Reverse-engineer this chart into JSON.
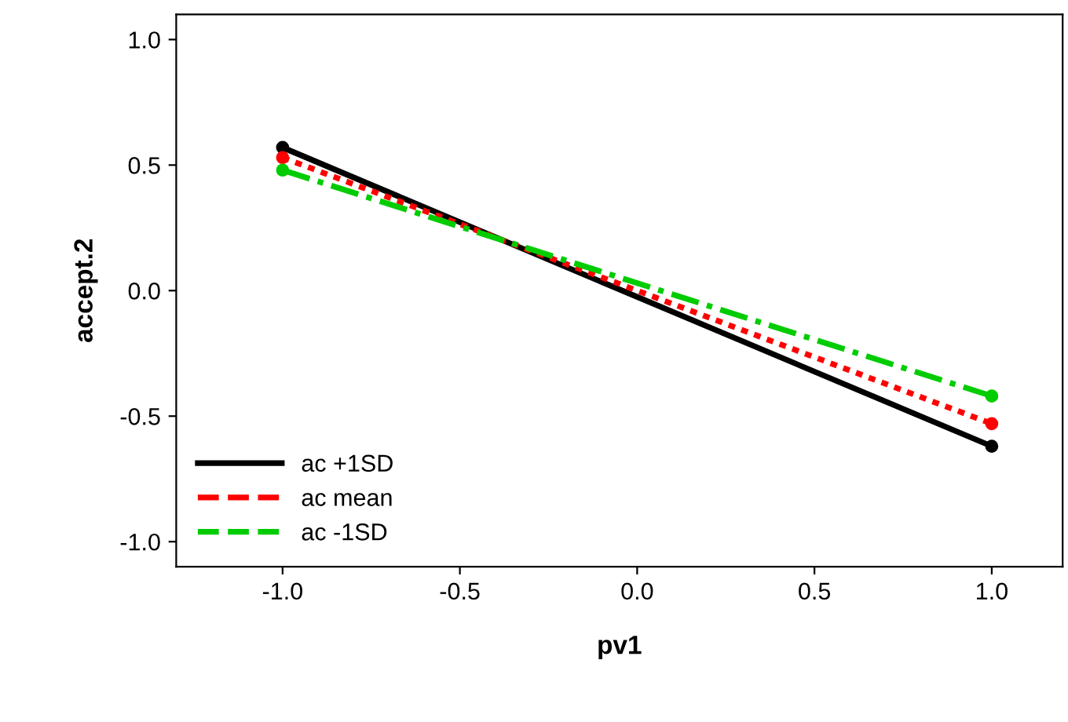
{
  "chart_data": {
    "type": "line",
    "xlabel": "pv1",
    "ylabel": "accept.2",
    "x": [
      -1.0,
      1.0
    ],
    "series": [
      {
        "name": "ac +1SD",
        "color": "#000000",
        "values": [
          0.57,
          -0.62
        ],
        "line_style": "solid"
      },
      {
        "name": "ac mean",
        "color": "#ff0000",
        "values": [
          0.53,
          -0.53
        ],
        "line_style": "dotted"
      },
      {
        "name": "ac -1SD",
        "color": "#00cc00",
        "values": [
          0.48,
          -0.42
        ],
        "line_style": "dashed"
      }
    ],
    "xlim": [
      -1.3,
      1.2
    ],
    "ylim": [
      -1.1,
      1.1
    ],
    "xticks": [
      {
        "value": -1,
        "label": "-1.0"
      },
      -0.5,
      {
        "value": 0,
        "label": "0.0"
      },
      0.5,
      {
        "value": 1,
        "label": "1.0"
      }
    ],
    "yticks": [
      {
        "value": -1,
        "label": "-1.0"
      },
      -0.5,
      {
        "value": 0,
        "label": "0.0"
      },
      0.5,
      {
        "value": 1,
        "label": "1.0"
      }
    ],
    "grid": false,
    "legend": "bottom left",
    "marker": "circle"
  }
}
